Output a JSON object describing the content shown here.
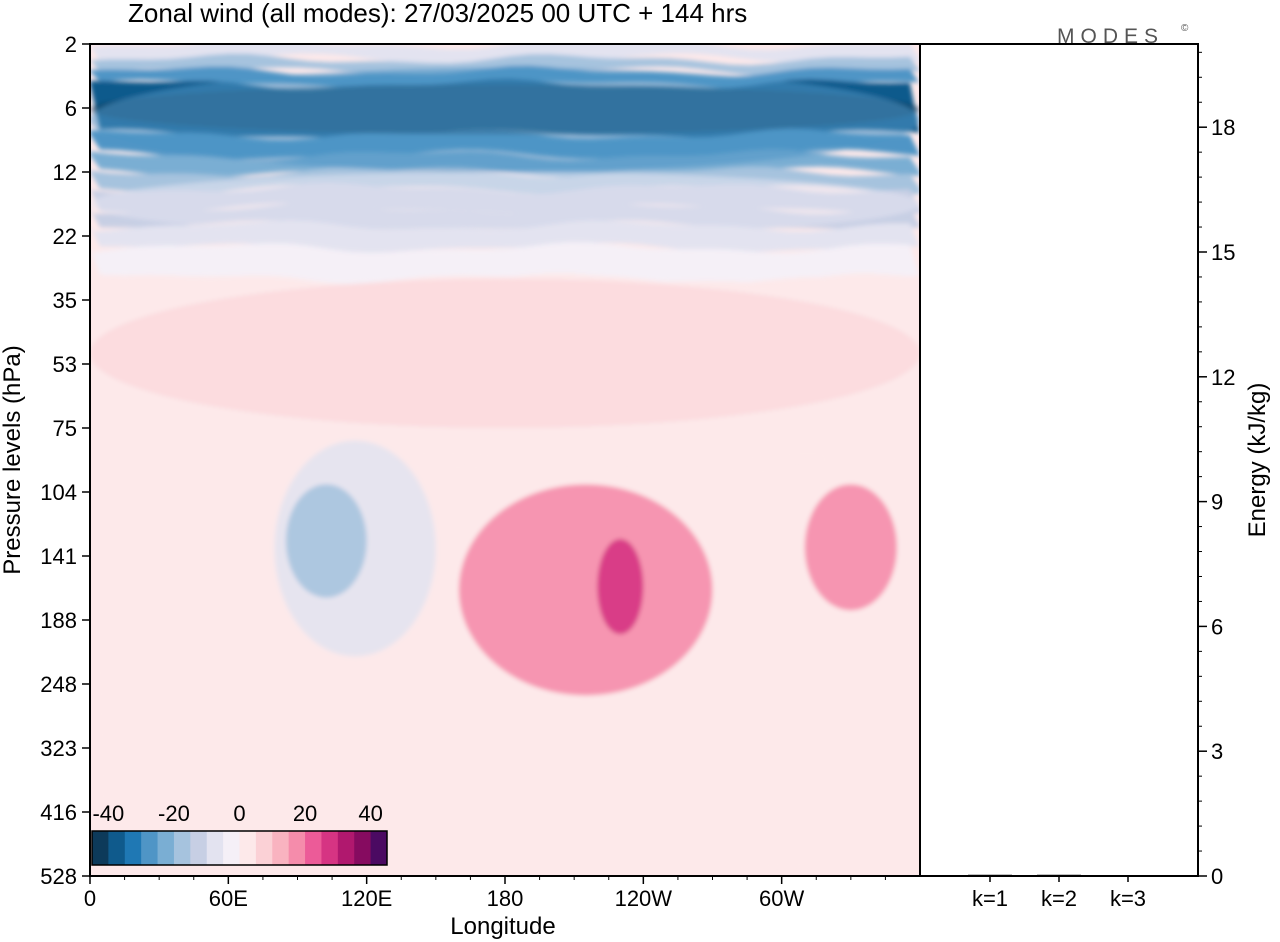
{
  "header": {
    "title": "Zonal wind (all modes):  27/03/2025  00 UTC  + 144 hrs",
    "logo_text": "MODES",
    "logo_mark": "©"
  },
  "chart_data": [
    {
      "type": "heatmap",
      "variable": "Zonal wind",
      "xlabel": "Longitude",
      "ylabel": "Pressure levels (hPa)",
      "x_ticks": [
        "0",
        "60E",
        "120E",
        "180",
        "120W",
        "60W"
      ],
      "x_tick_values": [
        0,
        60,
        120,
        180,
        240,
        300
      ],
      "xlim": [
        0,
        360
      ],
      "y_ticks": [
        "2",
        "6",
        "12",
        "22",
        "35",
        "53",
        "75",
        "104",
        "141",
        "188",
        "248",
        "323",
        "416",
        "528"
      ],
      "y_scale": "pressure levels (top 2 hPa, bottom 528 hPa)",
      "colorbar": {
        "labels": [
          "-40",
          "-20",
          "0",
          "20",
          "40"
        ],
        "label_values": [
          -40,
          -20,
          0,
          20,
          40
        ],
        "range": [
          -45,
          45
        ],
        "colors": [
          "#0d3a5a",
          "#0f5a8c",
          "#1f78b4",
          "#4f95c6",
          "#7aaed3",
          "#a6c3de",
          "#c7cfe4",
          "#e3e3f0",
          "#f5f0f7",
          "#fde9ea",
          "#fbd1d6",
          "#f9b3c0",
          "#f58cab",
          "#ec5b98",
          "#d63483",
          "#b0186e",
          "#860b60",
          "#4b0a62"
        ]
      },
      "regions": [
        {
          "level": -45,
          "lon": [
            0,
            360
          ],
          "p": [
            4,
            8
          ],
          "note": "strongest easterlies 4-8 hPa, 175E-150W"
        },
        {
          "level": -30,
          "lon": [
            0,
            360
          ],
          "p": [
            3,
            12
          ]
        },
        {
          "level": -10,
          "lon": [
            0,
            360
          ],
          "p": [
            12,
            22
          ]
        },
        {
          "level": 7,
          "lon": [
            0,
            360
          ],
          "p": [
            30,
            75
          ]
        },
        {
          "level": -10,
          "lon": [
            80,
            150
          ],
          "p": [
            80,
            220
          ],
          "note": "easterly tongue near 90E-140E"
        },
        {
          "level": -20,
          "lon": [
            85,
            120
          ],
          "p": [
            100,
            170
          ]
        },
        {
          "level": 15,
          "lon": [
            160,
            270
          ],
          "p": [
            100,
            260
          ],
          "note": "westerly jet core near 150W"
        },
        {
          "level": 25,
          "lon": [
            220,
            240
          ],
          "p": [
            130,
            200
          ]
        },
        {
          "level": 15,
          "lon": [
            310,
            350
          ],
          "p": [
            100,
            180
          ]
        }
      ]
    },
    {
      "type": "bar",
      "ylabel": "Energy (kJ/kg)",
      "categories": [
        "k=1",
        "k=2",
        "k=3"
      ],
      "values": [
        0.03,
        0.03,
        0.02
      ],
      "y_ticks": [
        "0",
        "3",
        "6",
        "9",
        "12",
        "15",
        "18"
      ],
      "ylim": [
        0,
        20
      ]
    }
  ]
}
